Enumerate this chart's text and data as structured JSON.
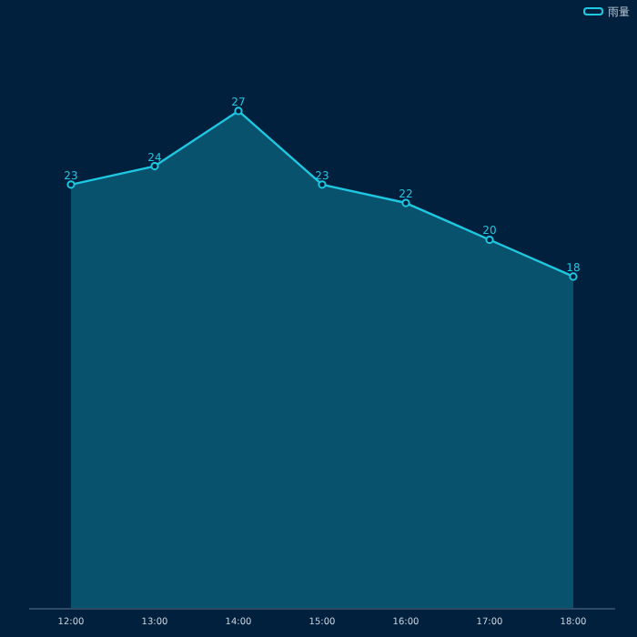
{
  "chart_data": {
    "type": "area",
    "categories": [
      "12:00",
      "13:00",
      "14:00",
      "15:00",
      "16:00",
      "17:00",
      "18:00"
    ],
    "series": [
      {
        "name": "雨量",
        "color": "#1ec8e0",
        "values": [
          23,
          24,
          27,
          23,
          22,
          20,
          18
        ]
      }
    ],
    "data_labels": true,
    "legend": "top right",
    "marker": "circle",
    "grid": false
  }
}
